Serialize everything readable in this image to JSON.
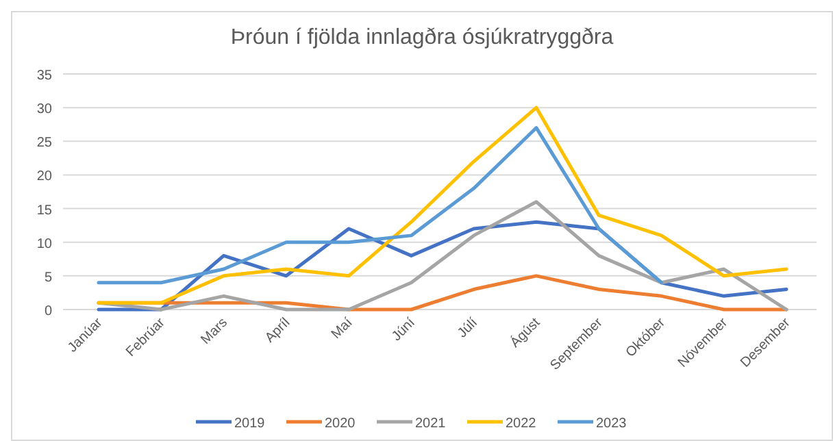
{
  "chart_data": {
    "type": "line",
    "title": "Þróun í fjölda innlagðra ósjúkratryggðra",
    "categories": [
      "Janúar",
      "Febrúar",
      "Mars",
      "Apríl",
      "Maí",
      "Júní",
      "Júlí",
      "Ágúst",
      "September",
      "Október",
      "Nóvember",
      "Desember"
    ],
    "series": [
      {
        "name": "2019",
        "color": "#4472c4",
        "values": [
          0,
          0,
          8,
          5,
          12,
          8,
          12,
          13,
          12,
          4,
          2,
          3
        ]
      },
      {
        "name": "2020",
        "color": "#ed7d31",
        "values": [
          1,
          1,
          1,
          1,
          0,
          0,
          3,
          5,
          3,
          2,
          0,
          0
        ]
      },
      {
        "name": "2021",
        "color": "#a5a5a5",
        "values": [
          1,
          0,
          2,
          0,
          0,
          4,
          11,
          16,
          8,
          4,
          6,
          0
        ]
      },
      {
        "name": "2022",
        "color": "#ffc000",
        "values": [
          1,
          1,
          5,
          6,
          5,
          13,
          22,
          30,
          14,
          11,
          5,
          6
        ]
      },
      {
        "name": "2023",
        "color": "#5b9bd5",
        "values": [
          4,
          4,
          6,
          10,
          10,
          11,
          18,
          27,
          12,
          4,
          null,
          null
        ]
      }
    ],
    "ylim": [
      0,
      35
    ],
    "yticks": [
      0,
      5,
      10,
      15,
      20,
      25,
      30,
      35
    ],
    "grid": "y",
    "legend": "bottom",
    "marker": "none",
    "line_style": "solid"
  }
}
